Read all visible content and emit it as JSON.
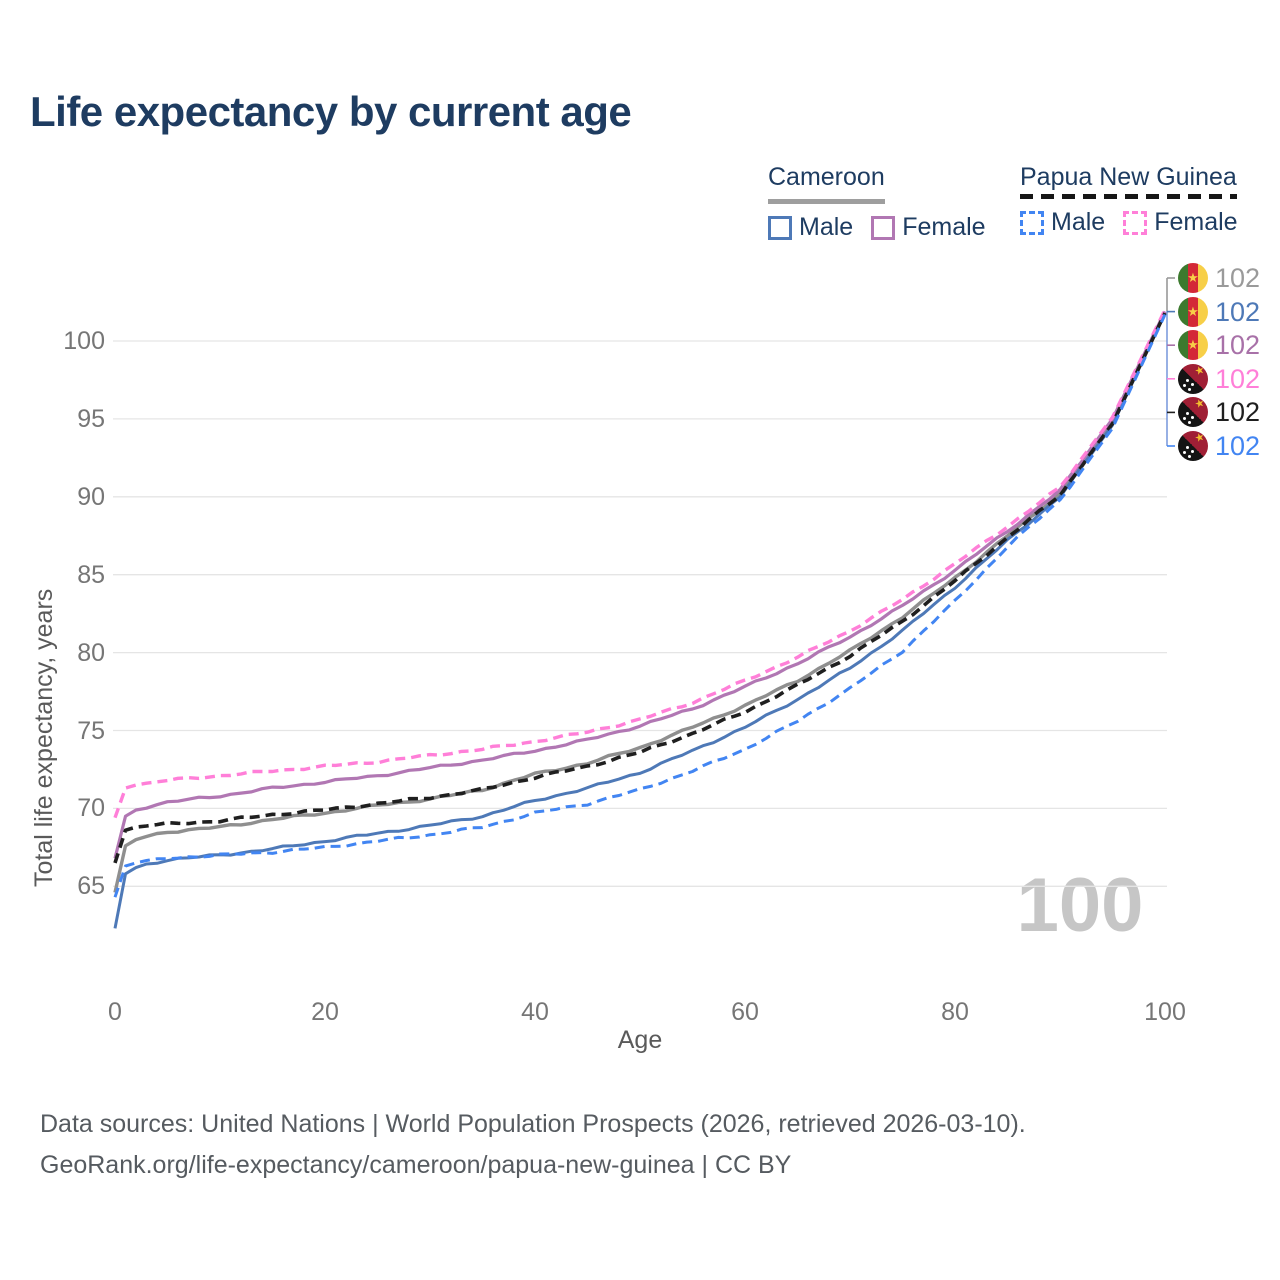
{
  "title": "Life expectancy by current age",
  "watermark": {
    "text": "100"
  },
  "legend": {
    "groups": [
      {
        "id": "cameroon",
        "label": "Cameroon",
        "underline_style": "solid-gray",
        "items": [
          {
            "label": "Male",
            "swatch": "solid",
            "color": "#4e79b7"
          },
          {
            "label": "Female",
            "swatch": "solid",
            "color": "#b177b3"
          }
        ]
      },
      {
        "id": "papua-new-guinea",
        "label": "Papua New Guinea",
        "underline_style": "dashed-black",
        "items": [
          {
            "label": "Male",
            "swatch": "dashed",
            "color": "#4285f2"
          },
          {
            "label": "Female",
            "swatch": "dashed",
            "color": "#ff7fd8"
          }
        ]
      }
    ]
  },
  "chart_data": {
    "type": "line",
    "title": "Life expectancy by current age",
    "xlabel": "Age",
    "ylabel": "Total life expectancy, years",
    "xlim": [
      0,
      100
    ],
    "ylim": [
      62,
      102.5
    ],
    "x_ticks": [
      0,
      20,
      40,
      60,
      80,
      100
    ],
    "y_ticks": [
      65,
      70,
      75,
      80,
      85,
      90,
      95,
      100
    ],
    "grid": "horizontal",
    "legend_position": "top-right",
    "x": [
      0,
      1,
      2,
      3,
      5,
      10,
      15,
      20,
      25,
      30,
      35,
      40,
      45,
      50,
      55,
      60,
      65,
      70,
      75,
      80,
      85,
      90,
      95,
      100
    ],
    "series": [
      {
        "name": "Cameroon Total",
        "country": "Cameroon",
        "sex": "Total",
        "color": "#8f8f8f",
        "style": "solid",
        "width": 3.4,
        "flag": "cameroon",
        "end_label": "102",
        "label_color": "#9a9a9a",
        "values": [
          64.6,
          67.6,
          68.0,
          68.2,
          68.5,
          68.8,
          69.3,
          69.7,
          70.2,
          70.6,
          71.2,
          72.2,
          72.9,
          73.9,
          75.2,
          76.6,
          78.2,
          80.1,
          82.3,
          84.8,
          87.5,
          90.2,
          94.8,
          101.8
        ]
      },
      {
        "name": "Cameroon Male",
        "country": "Cameroon",
        "sex": "Male",
        "color": "#4e79b7",
        "style": "solid",
        "width": 3.0,
        "flag": "cameroon",
        "end_label": "102",
        "label_color": "#4e79b7",
        "values": [
          62.3,
          65.8,
          66.2,
          66.4,
          66.7,
          67.0,
          67.4,
          67.9,
          68.4,
          68.9,
          69.5,
          70.5,
          71.3,
          72.3,
          73.7,
          75.2,
          77.0,
          79.0,
          81.4,
          84.2,
          87.2,
          90.0,
          94.6,
          101.8
        ]
      },
      {
        "name": "Cameroon Female",
        "country": "Cameroon",
        "sex": "Female",
        "color": "#b177b3",
        "style": "solid",
        "width": 3.2,
        "flag": "cameroon",
        "end_label": "102",
        "label_color": "#a871a8",
        "values": [
          66.8,
          69.5,
          69.9,
          70.1,
          70.4,
          70.8,
          71.3,
          71.7,
          72.1,
          72.6,
          73.1,
          73.7,
          74.4,
          75.3,
          76.4,
          77.8,
          79.3,
          81.0,
          83.0,
          85.3,
          87.8,
          90.4,
          95.0,
          101.9
        ]
      },
      {
        "name": "Papua New Guinea Female",
        "country": "Papua New Guinea",
        "sex": "Female",
        "color": "#ff7fd8",
        "style": "dashed",
        "width": 3.4,
        "flag": "png",
        "end_label": "102",
        "label_color": "#ff7fd8",
        "values": [
          69.4,
          71.3,
          71.5,
          71.6,
          71.8,
          72.1,
          72.4,
          72.7,
          73.0,
          73.4,
          73.8,
          74.3,
          74.9,
          75.7,
          76.8,
          78.2,
          79.7,
          81.4,
          83.4,
          85.7,
          88.1,
          90.6,
          95.1,
          102.0
        ]
      },
      {
        "name": "Papua New Guinea Total",
        "country": "Papua New Guinea",
        "sex": "Total",
        "color": "#1f1f1f",
        "style": "dashed",
        "width": 3.6,
        "flag": "png",
        "end_label": "102",
        "label_color": "#1f1f1f",
        "values": [
          66.5,
          68.6,
          68.8,
          68.9,
          69.0,
          69.2,
          69.6,
          69.9,
          70.3,
          70.7,
          71.2,
          72.0,
          72.7,
          73.6,
          74.8,
          76.2,
          77.9,
          79.8,
          82.0,
          84.6,
          87.4,
          90.1,
          94.7,
          101.8
        ]
      },
      {
        "name": "Papua New Guinea Male",
        "country": "Papua New Guinea",
        "sex": "Male",
        "color": "#4285f2",
        "style": "dashed",
        "width": 3.0,
        "flag": "png",
        "end_label": "102",
        "label_color": "#4285f2",
        "values": [
          64.3,
          66.3,
          66.5,
          66.6,
          66.8,
          67.0,
          67.2,
          67.5,
          67.9,
          68.3,
          68.8,
          69.7,
          70.3,
          71.2,
          72.4,
          73.8,
          75.6,
          77.7,
          80.1,
          83.3,
          86.8,
          89.8,
          94.4,
          101.7
        ]
      }
    ]
  },
  "footer": {
    "line1": "Data sources: United Nations | World Population Prospects (2026, retrieved 2026-03-10).",
    "line2": "GeoRank.org/life-expectancy/cameroon/papua-new-guinea | CC BY"
  }
}
